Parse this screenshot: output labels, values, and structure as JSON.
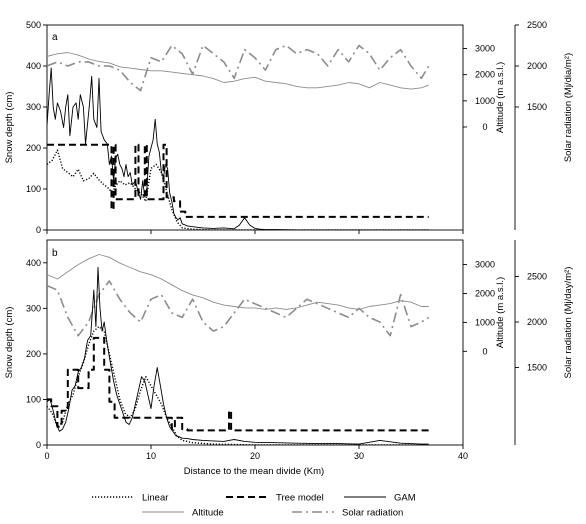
{
  "chart_data": [
    {
      "type": "line",
      "panel": "a",
      "xlabel": "",
      "ylabel": "Snow depth (cm)",
      "y2label": "Altitude (m a.s.l.)",
      "y3label": "Solar radiation (Mj/dia/m²)",
      "xlim": [
        0,
        40
      ],
      "ylim": [
        0,
        500
      ],
      "y2lim": [
        -3940,
        3900
      ],
      "y3lim": [
        0,
        2500
      ],
      "xticks": [
        "0",
        "10",
        "20",
        "30",
        "40"
      ],
      "yticks": [
        "0",
        "100",
        "200",
        "300",
        "400",
        "500"
      ],
      "y2ticks": [
        "0",
        "1000",
        "2000",
        "3000"
      ],
      "y3ticks": [
        "1500",
        "2000",
        "2500"
      ],
      "series": [
        {
          "name": "Linear",
          "style": "dotted",
          "axis": "snow",
          "x": [
            0,
            0.5,
            1,
            1.5,
            2,
            2.5,
            3,
            3.5,
            4,
            4.5,
            5,
            5.5,
            6,
            6.3,
            6.5,
            7,
            7.5,
            8,
            8.5,
            9,
            9.5,
            10,
            10.5,
            11,
            11.5,
            12,
            12.5,
            13,
            14,
            16,
            20,
            25,
            30,
            35,
            36.7
          ],
          "y": [
            160,
            170,
            195,
            150,
            140,
            130,
            148,
            120,
            125,
            138,
            122,
            110,
            100,
            85,
            105,
            120,
            110,
            115,
            100,
            90,
            70,
            150,
            160,
            140,
            95,
            50,
            20,
            5,
            2,
            0,
            0,
            0,
            0,
            0,
            0
          ]
        },
        {
          "name": "Tree model",
          "style": "dashed",
          "axis": "snow",
          "x": [
            0,
            6.2,
            6.2,
            6.4,
            6.4,
            6.6,
            6.6,
            8.5,
            8.5,
            8.8,
            8.8,
            9.4,
            9.4,
            9.6,
            9.6,
            11.2,
            11.2,
            11.5,
            11.5,
            12.2,
            12.2,
            12.8,
            12.8,
            13.3,
            13.3,
            36.7
          ],
          "y": [
            208,
            208,
            50,
            50,
            208,
            208,
            75,
            75,
            208,
            208,
            85,
            85,
            208,
            208,
            75,
            75,
            208,
            208,
            80,
            80,
            70,
            70,
            45,
            45,
            32,
            32
          ]
        },
        {
          "name": "GAM",
          "style": "solid",
          "axis": "snow",
          "x": [
            0,
            0.2,
            0.4,
            0.6,
            0.8,
            1,
            1.3,
            1.6,
            1.8,
            2,
            2.2,
            2.5,
            2.8,
            3,
            3.2,
            3.5,
            3.7,
            3.9,
            4.1,
            4.3,
            4.5,
            4.8,
            5,
            5.2,
            5.5,
            5.8,
            6,
            6.2,
            6.4,
            6.6,
            6.8,
            7,
            7.2,
            7.4,
            7.6,
            7.8,
            8,
            8.2,
            8.5,
            8.8,
            9,
            9.2,
            9.4,
            9.6,
            9.8,
            10,
            10.2,
            10.4,
            10.6,
            10.8,
            11,
            11.2,
            11.4,
            11.6,
            11.8,
            12,
            12.2,
            12.4,
            12.6,
            12.8,
            13,
            13.5,
            14,
            15,
            16,
            17,
            18,
            18.5,
            19,
            19.5,
            20,
            20.5,
            21,
            22,
            24,
            26,
            28,
            30,
            32,
            34,
            36,
            36.7
          ],
          "y": [
            255,
            330,
            395,
            300,
            270,
            310,
            290,
            250,
            300,
            330,
            230,
            300,
            310,
            270,
            330,
            300,
            210,
            260,
            310,
            375,
            270,
            250,
            370,
            240,
            220,
            210,
            160,
            180,
            120,
            175,
            185,
            160,
            150,
            130,
            160,
            130,
            140,
            110,
            120,
            90,
            75,
            120,
            80,
            100,
            180,
            200,
            220,
            270,
            210,
            190,
            140,
            130,
            160,
            150,
            90,
            70,
            40,
            30,
            25,
            30,
            15,
            10,
            8,
            5,
            4,
            5,
            3,
            12,
            30,
            12,
            4,
            2,
            1,
            1,
            0,
            0,
            0,
            0,
            0,
            0,
            0,
            0
          ]
        },
        {
          "name": "Altitude",
          "style": "solid-gray",
          "axis": "altitude",
          "x": [
            0,
            1,
            2,
            3,
            4,
            5,
            6,
            7,
            8,
            9,
            10,
            11,
            12,
            13,
            14,
            15,
            16,
            17,
            18,
            19,
            20,
            21,
            22,
            23,
            24,
            25,
            26,
            27,
            28,
            29,
            30,
            31,
            32,
            33,
            34,
            35,
            36,
            36.7
          ],
          "y": [
            2700,
            2800,
            2850,
            2750,
            2600,
            2500,
            2450,
            2300,
            2250,
            2200,
            2150,
            2150,
            2100,
            2050,
            2000,
            1950,
            1850,
            1700,
            1750,
            1850,
            1900,
            1750,
            1700,
            1650,
            1550,
            1500,
            1500,
            1550,
            1600,
            1700,
            1650,
            1500,
            1700,
            1600,
            1500,
            1450,
            1500,
            1600
          ]
        },
        {
          "name": "Solar radiation",
          "style": "dash-dot-gray",
          "axis": "solar",
          "x": [
            0,
            1,
            2,
            3,
            4,
            5,
            6,
            7,
            8,
            9,
            10,
            11,
            12,
            13,
            14,
            15,
            16,
            17,
            18,
            19,
            20,
            21,
            22,
            23,
            24,
            25,
            26,
            27,
            28,
            29,
            30,
            31,
            32,
            33,
            34,
            35,
            36,
            36.7
          ],
          "y": [
            2000,
            2050,
            2000,
            2050,
            2050,
            2000,
            2000,
            1950,
            1800,
            1700,
            2100,
            2050,
            2250,
            2150,
            1900,
            2250,
            2150,
            2050,
            1850,
            2200,
            2100,
            1950,
            2200,
            2250,
            2150,
            2200,
            2150,
            2000,
            2200,
            2050,
            2250,
            2150,
            1950,
            2100,
            2200,
            2000,
            1850,
            2000
          ]
        }
      ]
    },
    {
      "type": "line",
      "panel": "b",
      "xlabel": "Distance to the mean divide (Km)",
      "ylabel": "Snow depth (cm)",
      "y2label": "Altitude (m a.s.l.)",
      "y3label": "Solar radiation (Mj/day/m²)",
      "xlim": [
        0,
        40
      ],
      "ylim": [
        0,
        450
      ],
      "y2lim": [
        -3240,
        3850
      ],
      "y3lim": [
        650,
        2900
      ],
      "xticks": [
        "0",
        "10",
        "20",
        "30",
        "40"
      ],
      "yticks": [
        "0",
        "100",
        "200",
        "300",
        "400"
      ],
      "y2ticks": [
        "0",
        "1000",
        "2000",
        "3000"
      ],
      "y3ticks": [
        "1500",
        "2000",
        "2500"
      ],
      "series": [
        {
          "name": "Linear",
          "style": "dotted",
          "axis": "snow",
          "x": [
            0,
            0.5,
            1,
            1.5,
            2,
            2.5,
            3,
            3.5,
            4,
            4.5,
            5,
            5.5,
            6,
            6.5,
            7,
            7.5,
            8,
            8.5,
            9,
            9.5,
            10,
            10.5,
            11,
            11.5,
            12,
            12.5,
            13,
            14,
            16,
            20,
            25,
            30,
            36.7
          ],
          "y": [
            85,
            70,
            40,
            50,
            90,
            110,
            150,
            180,
            220,
            250,
            260,
            250,
            200,
            150,
            100,
            70,
            60,
            80,
            120,
            150,
            130,
            110,
            90,
            60,
            40,
            20,
            10,
            5,
            2,
            0,
            0,
            0,
            0
          ]
        },
        {
          "name": "Tree model",
          "style": "dashed",
          "axis": "snow",
          "x": [
            0,
            0.4,
            0.4,
            1,
            1,
            1.4,
            1.4,
            2,
            2,
            3,
            3,
            4,
            4,
            4.5,
            4.5,
            5.5,
            5.5,
            6,
            6,
            6.5,
            6.5,
            10,
            10,
            12,
            12,
            12.3,
            12.3,
            13,
            13,
            13.5,
            13.5,
            17.5,
            17.5,
            17.7,
            17.7,
            17.9,
            17.9,
            36.7
          ],
          "y": [
            100,
            100,
            85,
            85,
            40,
            40,
            75,
            75,
            165,
            165,
            125,
            125,
            165,
            165,
            235,
            235,
            165,
            165,
            95,
            95,
            60,
            60,
            60,
            60,
            35,
            35,
            60,
            60,
            35,
            35,
            32,
            32,
            75,
            75,
            32,
            32,
            32,
            32
          ]
        },
        {
          "name": "GAM",
          "style": "solid",
          "axis": "snow",
          "x": [
            0,
            0.3,
            0.6,
            0.9,
            1.2,
            1.5,
            1.8,
            2.1,
            2.4,
            2.7,
            3,
            3.3,
            3.6,
            3.9,
            4.2,
            4.5,
            4.7,
            4.9,
            5.1,
            5.3,
            5.5,
            5.8,
            6.1,
            6.4,
            6.7,
            7,
            7.3,
            7.6,
            7.9,
            8.2,
            8.5,
            8.8,
            9.1,
            9.4,
            9.7,
            10,
            10.3,
            10.6,
            10.9,
            11.2,
            11.5,
            11.8,
            12.1,
            12.4,
            12.7,
            13,
            13.5,
            14,
            15,
            16,
            17,
            17.5,
            18,
            19,
            20,
            22,
            24,
            26,
            28,
            30,
            32,
            34,
            36,
            36.7
          ],
          "y": [
            95,
            100,
            75,
            45,
            30,
            35,
            50,
            80,
            120,
            130,
            160,
            170,
            190,
            230,
            240,
            340,
            260,
            390,
            300,
            250,
            270,
            220,
            180,
            140,
            110,
            90,
            70,
            50,
            45,
            60,
            90,
            120,
            150,
            140,
            110,
            80,
            130,
            170,
            130,
            90,
            60,
            40,
            30,
            20,
            18,
            15,
            14,
            12,
            10,
            9,
            8,
            10,
            12,
            8,
            6,
            5,
            4,
            3,
            3,
            2,
            10,
            4,
            2,
            2
          ]
        },
        {
          "name": "Altitude",
          "style": "solid-gray",
          "axis": "altitude",
          "x": [
            0,
            1,
            2,
            3,
            4,
            5,
            6,
            7,
            8,
            9,
            10,
            11,
            12,
            13,
            14,
            15,
            16,
            17,
            18,
            19,
            20,
            21,
            22,
            23,
            24,
            25,
            26,
            27,
            28,
            29,
            30,
            31,
            32,
            33,
            34,
            35,
            36,
            36.7
          ],
          "y": [
            2650,
            2500,
            2750,
            3000,
            3200,
            3350,
            3250,
            3050,
            2900,
            2750,
            2650,
            2500,
            2300,
            2100,
            1950,
            1850,
            1700,
            1600,
            1550,
            1500,
            1500,
            1450,
            1500,
            1450,
            1500,
            1600,
            1700,
            1650,
            1600,
            1500,
            1450,
            1550,
            1600,
            1650,
            1750,
            1700,
            1550,
            1550
          ]
        },
        {
          "name": "Solar radiation",
          "style": "dash-dot-gray",
          "axis": "solar",
          "x": [
            0,
            1,
            2,
            3,
            4,
            5,
            6,
            7,
            8,
            9,
            10,
            11,
            12,
            13,
            14,
            15,
            16,
            17,
            18,
            19,
            20,
            21,
            22,
            23,
            24,
            25,
            26,
            27,
            28,
            29,
            30,
            31,
            32,
            33,
            34,
            35,
            36,
            36.7
          ],
          "y": [
            2400,
            2350,
            2050,
            1850,
            2000,
            2300,
            2450,
            2250,
            2100,
            2000,
            2250,
            2300,
            2100,
            2050,
            2250,
            2000,
            1900,
            1950,
            2100,
            2250,
            2200,
            2150,
            2100,
            2050,
            2150,
            2250,
            2200,
            2150,
            2100,
            2050,
            2150,
            2050,
            2000,
            1850,
            2300,
            1950,
            2000,
            2050
          ]
        }
      ]
    }
  ],
  "legend": [
    {
      "label": "Linear",
      "style": "dotted"
    },
    {
      "label": "Tree model",
      "style": "dashed"
    },
    {
      "label": "GAM",
      "style": "solid"
    },
    {
      "label": "Altitude",
      "style": "solid-gray"
    },
    {
      "label": "Solar radiation",
      "style": "dash-dot-gray"
    }
  ],
  "colors": {
    "dark": "#000000",
    "gray": "#8c8c8c",
    "axis": "#000000"
  }
}
